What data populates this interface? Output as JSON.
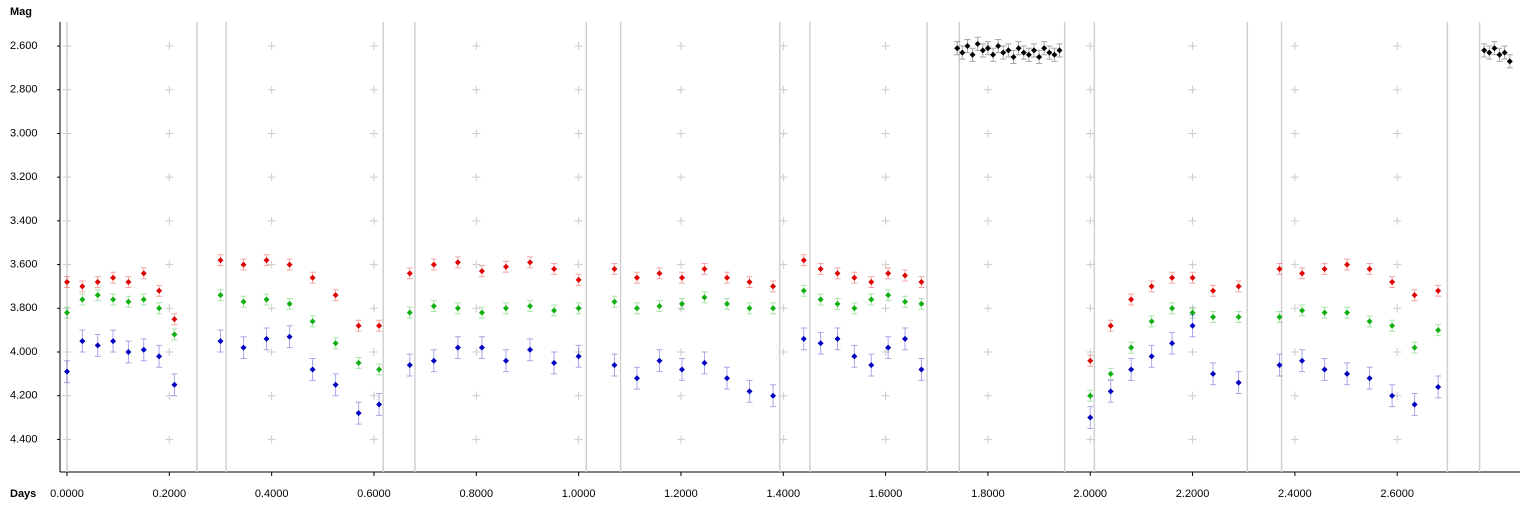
{
  "chart_data": {
    "type": "scatter",
    "y_label": "Mag",
    "x_label": "Days",
    "xlim": [
      -0.0137,
      2.84
    ],
    "ylim": [
      2.49,
      4.54
    ],
    "y_inverted": true,
    "grid": "crosses",
    "xticks": [
      {
        "value": 0,
        "label": "0.0000"
      },
      {
        "value": 0.2,
        "label": "0.2000"
      },
      {
        "value": 0.4,
        "label": "0.4000"
      },
      {
        "value": 0.6,
        "label": "0.6000"
      },
      {
        "value": 0.8,
        "label": "0.8000"
      },
      {
        "value": 1,
        "label": "1.0000"
      },
      {
        "value": 1.2,
        "label": "1.2000"
      },
      {
        "value": 1.4,
        "label": "1.4000"
      },
      {
        "value": 1.6,
        "label": "1.6000"
      },
      {
        "value": 1.8,
        "label": "1.8000"
      },
      {
        "value": 2,
        "label": "2.0000"
      },
      {
        "value": 2.2,
        "label": "2.2000"
      },
      {
        "value": 2.4,
        "label": "2.4000"
      },
      {
        "value": 2.6,
        "label": "2.6000"
      }
    ],
    "yticks": [
      {
        "value": 2.6,
        "label": "2.600"
      },
      {
        "value": 2.8,
        "label": "2.800"
      },
      {
        "value": 3,
        "label": "3.000"
      },
      {
        "value": 3.2,
        "label": "3.200"
      },
      {
        "value": 3.4,
        "label": "3.400"
      },
      {
        "value": 3.6,
        "label": "3.600"
      },
      {
        "value": 3.8,
        "label": "3.800"
      },
      {
        "value": 4,
        "label": "4.000"
      },
      {
        "value": 4.2,
        "label": "4.200"
      },
      {
        "value": 4.4,
        "label": "4.400"
      }
    ],
    "boundaries": [
      0,
      0.254,
      0.311,
      0.618,
      0.68,
      1.015,
      1.082,
      1.393,
      1.452,
      1.681,
      1.744,
      1.95,
      2.008,
      2.307,
      2.374,
      2.698,
      2.761
    ],
    "x": [
      0.0,
      0.03,
      0.06,
      0.09,
      0.12,
      0.15,
      0.18,
      0.21,
      0.3,
      0.345,
      0.39,
      0.435,
      0.48,
      0.525,
      0.57,
      0.61,
      0.67,
      0.717,
      0.764,
      0.811,
      0.858,
      0.905,
      0.952,
      1.0,
      1.07,
      1.114,
      1.158,
      1.202,
      1.246,
      1.29,
      1.334,
      1.38,
      1.44,
      1.473,
      1.506,
      1.539,
      1.572,
      1.605,
      1.638,
      1.67,
      2.0,
      2.04,
      2.08,
      2.12,
      2.16,
      2.2,
      2.24,
      2.29,
      2.37,
      2.414,
      2.458,
      2.502,
      2.546,
      2.59,
      2.634,
      2.68
    ],
    "series": [
      {
        "color": "#e00000",
        "error": 0.025,
        "values": [
          3.68,
          3.7,
          3.68,
          3.66,
          3.68,
          3.64,
          3.72,
          3.85,
          3.58,
          3.6,
          3.58,
          3.6,
          3.66,
          3.74,
          3.88,
          3.88,
          3.64,
          3.6,
          3.59,
          3.63,
          3.61,
          3.59,
          3.62,
          3.67,
          3.62,
          3.66,
          3.64,
          3.66,
          3.62,
          3.66,
          3.68,
          3.7,
          3.58,
          3.62,
          3.64,
          3.66,
          3.68,
          3.64,
          3.65,
          3.68,
          4.04,
          3.88,
          3.76,
          3.7,
          3.66,
          3.66,
          3.72,
          3.7,
          3.62,
          3.64,
          3.62,
          3.6,
          3.62,
          3.68,
          3.74,
          3.72
        ]
      },
      {
        "color": "#10b010",
        "error": 0.025,
        "values": [
          3.82,
          3.76,
          3.74,
          3.76,
          3.77,
          3.76,
          3.8,
          3.92,
          3.74,
          3.77,
          3.76,
          3.78,
          3.86,
          3.96,
          4.05,
          4.08,
          3.82,
          3.79,
          3.8,
          3.82,
          3.8,
          3.79,
          3.81,
          3.8,
          3.77,
          3.8,
          3.79,
          3.78,
          3.75,
          3.78,
          3.8,
          3.8,
          3.72,
          3.76,
          3.78,
          3.8,
          3.76,
          3.74,
          3.77,
          3.78,
          4.2,
          4.1,
          3.98,
          3.86,
          3.8,
          3.82,
          3.84,
          3.84,
          3.84,
          3.81,
          3.82,
          3.82,
          3.86,
          3.88,
          3.98,
          3.9
        ]
      },
      {
        "color": "#0000c0",
        "error": 0.05,
        "values": [
          4.09,
          3.95,
          3.97,
          3.95,
          4.0,
          3.99,
          4.02,
          4.15,
          3.95,
          3.98,
          3.94,
          3.93,
          4.08,
          4.15,
          4.28,
          4.24,
          4.06,
          4.04,
          3.98,
          3.98,
          4.04,
          3.99,
          4.05,
          4.02,
          4.06,
          4.12,
          4.04,
          4.08,
          4.05,
          4.12,
          4.18,
          4.2,
          3.94,
          3.96,
          3.94,
          4.02,
          4.06,
          3.98,
          3.94,
          4.08,
          4.3,
          4.18,
          4.08,
          4.02,
          3.96,
          3.88,
          4.1,
          4.14,
          4.06,
          4.04,
          4.08,
          4.1,
          4.12,
          4.2,
          4.24,
          4.16
        ]
      },
      {
        "color": "#000000",
        "error": 0.03,
        "x": [
          1.74,
          1.75,
          1.76,
          1.77,
          1.78,
          1.79,
          1.8,
          1.81,
          1.82,
          1.83,
          1.84,
          1.85,
          1.86,
          1.87,
          1.88,
          1.89,
          1.9,
          1.91,
          1.92,
          1.93,
          1.94,
          2.77,
          2.78,
          2.79,
          2.8,
          2.81,
          2.82
        ],
        "values": [
          2.61,
          2.63,
          2.6,
          2.64,
          2.59,
          2.62,
          2.61,
          2.64,
          2.6,
          2.63,
          2.62,
          2.65,
          2.61,
          2.63,
          2.64,
          2.62,
          2.65,
          2.61,
          2.63,
          2.64,
          2.62,
          2.62,
          2.63,
          2.61,
          2.64,
          2.63,
          2.67
        ]
      }
    ]
  }
}
